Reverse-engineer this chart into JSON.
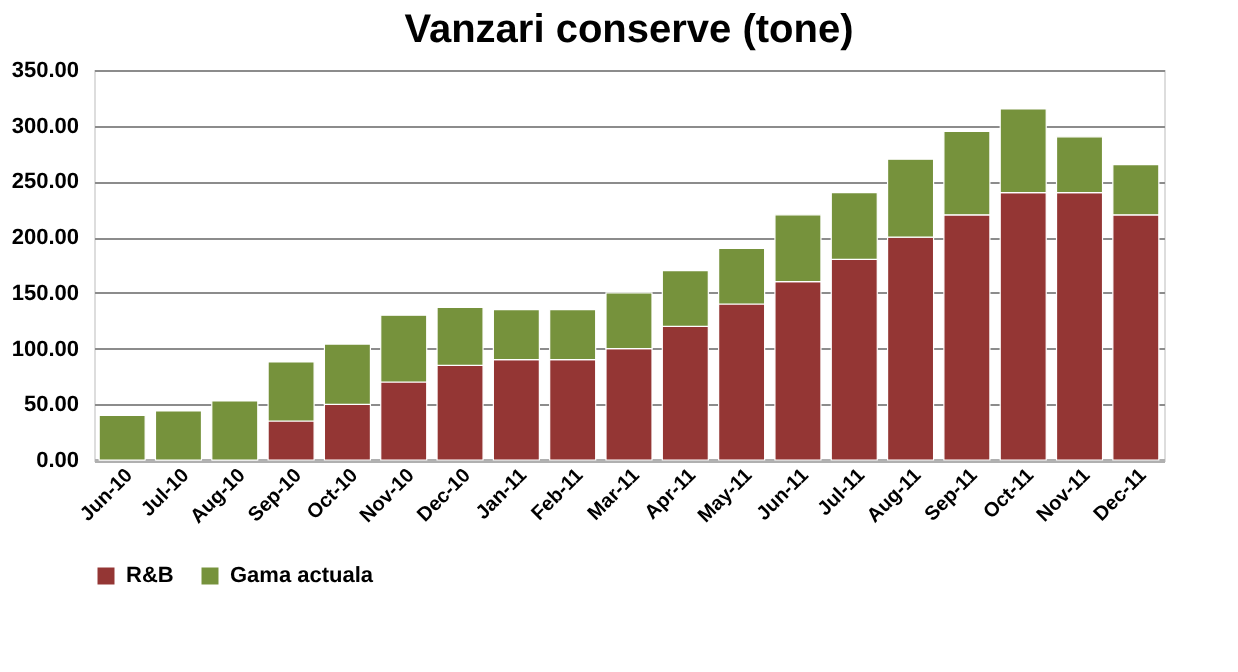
{
  "chart_data": {
    "type": "bar",
    "stacked": true,
    "title": "Vanzari conserve (tone)",
    "categories": [
      "Jun-10",
      "Jul-10",
      "Aug-10",
      "Sep-10",
      "Oct-10",
      "Nov-10",
      "Dec-10",
      "Jan-11",
      "Feb-11",
      "Mar-11",
      "Apr-11",
      "May-11",
      "Jun-11",
      "Jul-11",
      "Aug-11",
      "Sep-11",
      "Oct-11",
      "Nov-11",
      "Dec-11"
    ],
    "series": [
      {
        "name": "R&B",
        "color": "#943634",
        "values": [
          0,
          0,
          0,
          35,
          50,
          70,
          85,
          90,
          90,
          100,
          120,
          140,
          160,
          180,
          200,
          220,
          240,
          240,
          220
        ]
      },
      {
        "name": "Gama actuala",
        "color": "#76923c",
        "values": [
          40,
          44,
          53,
          53,
          54,
          60,
          52,
          45,
          45,
          50,
          50,
          50,
          60,
          60,
          70,
          75,
          75,
          50,
          45
        ]
      }
    ],
    "ylim": [
      0,
      350
    ],
    "yticks": [
      {
        "value": 0,
        "label": "0.00"
      },
      {
        "value": 50,
        "label": "50.00"
      },
      {
        "value": 100,
        "label": "100.00"
      },
      {
        "value": 150,
        "label": "150.00"
      },
      {
        "value": 200,
        "label": "200.00"
      },
      {
        "value": 250,
        "label": "250.00"
      },
      {
        "value": 300,
        "label": "300.00"
      },
      {
        "value": 350,
        "label": "350.00"
      }
    ],
    "grid": "y",
    "legend": "bottom"
  }
}
